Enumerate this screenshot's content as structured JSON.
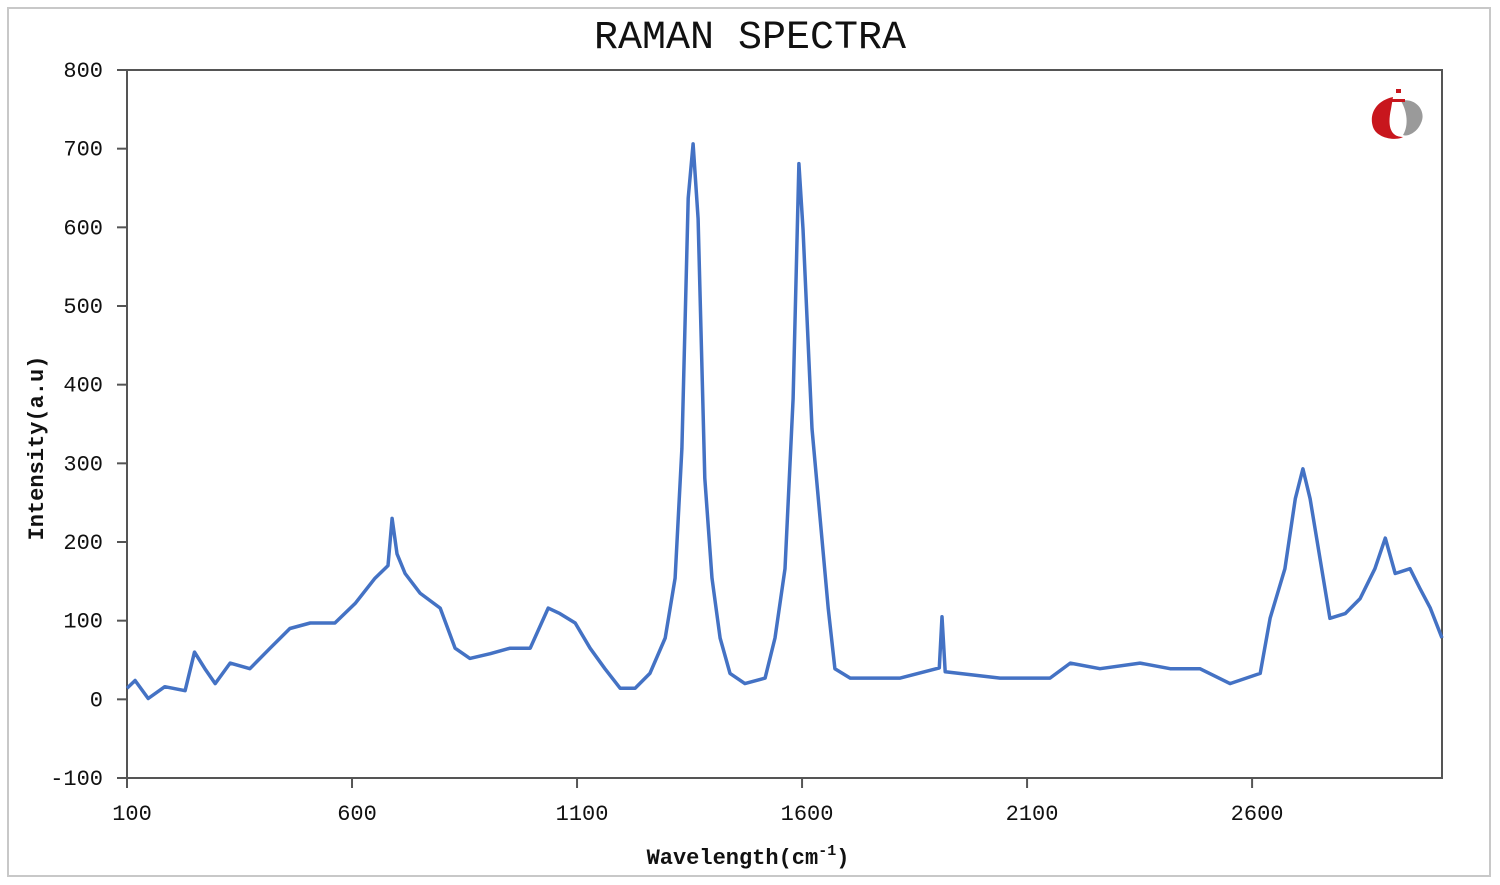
{
  "chart_data": {
    "type": "line",
    "title": "RAMAN SPECTRA",
    "xlabel": "Wavelength(cm",
    "xlabel_superscript": "-1",
    "xlabel_close": ")",
    "ylabel": "Intensity(a.u)",
    "xlim": [
      100,
      3022
    ],
    "ylim": [
      -100,
      800
    ],
    "xticks": [
      100,
      600,
      1100,
      1600,
      2100,
      2600
    ],
    "yticks": [
      800,
      700,
      600,
      500,
      400,
      300,
      200,
      100,
      0,
      -100
    ],
    "grid": false,
    "line_color": "#4472c4",
    "series": [
      {
        "x": [
          100,
          118,
          147,
          184,
          229,
          250,
          273,
          296,
          329,
          373,
          418,
          462,
          507,
          562,
          607,
          651,
          680,
          689,
          700,
          718,
          751,
          796,
          829,
          862,
          907,
          951,
          996,
          1036,
          1062,
          1096,
          1129,
          1162,
          1196,
          1229,
          1262,
          1296,
          1318,
          1333,
          1347,
          1358,
          1369,
          1384,
          1400,
          1418,
          1440,
          1473,
          1518,
          1540,
          1562,
          1580,
          1593,
          1602,
          1622,
          1640,
          1658,
          1673,
          1707,
          1818,
          1905,
          1911,
          1918,
          2040,
          2151,
          2196,
          2262,
          2351,
          2418,
          2484,
          2551,
          2618,
          2640,
          2673,
          2696,
          2713,
          2729,
          2751,
          2773,
          2807,
          2840,
          2873,
          2896,
          2918,
          2951,
          2973,
          2996,
          3022
        ],
        "y": [
          14,
          24,
          1,
          16,
          11,
          60,
          39,
          20,
          46,
          39,
          65,
          90,
          97,
          97,
          122,
          154,
          170,
          230,
          185,
          160,
          135,
          116,
          65,
          52,
          58,
          65,
          65,
          116,
          109,
          97,
          65,
          39,
          14,
          14,
          33,
          78,
          154,
          319,
          637,
          706,
          611,
          281,
          154,
          78,
          33,
          20,
          27,
          78,
          166,
          382,
          681,
          598,
          344,
          230,
          116,
          39,
          27,
          27,
          40,
          105,
          35,
          27,
          27,
          46,
          39,
          46,
          39,
          39,
          20,
          33,
          103,
          166,
          255,
          293,
          255,
          179,
          103,
          109,
          128,
          166,
          205,
          160,
          166,
          141,
          116,
          78
        ]
      }
    ]
  }
}
